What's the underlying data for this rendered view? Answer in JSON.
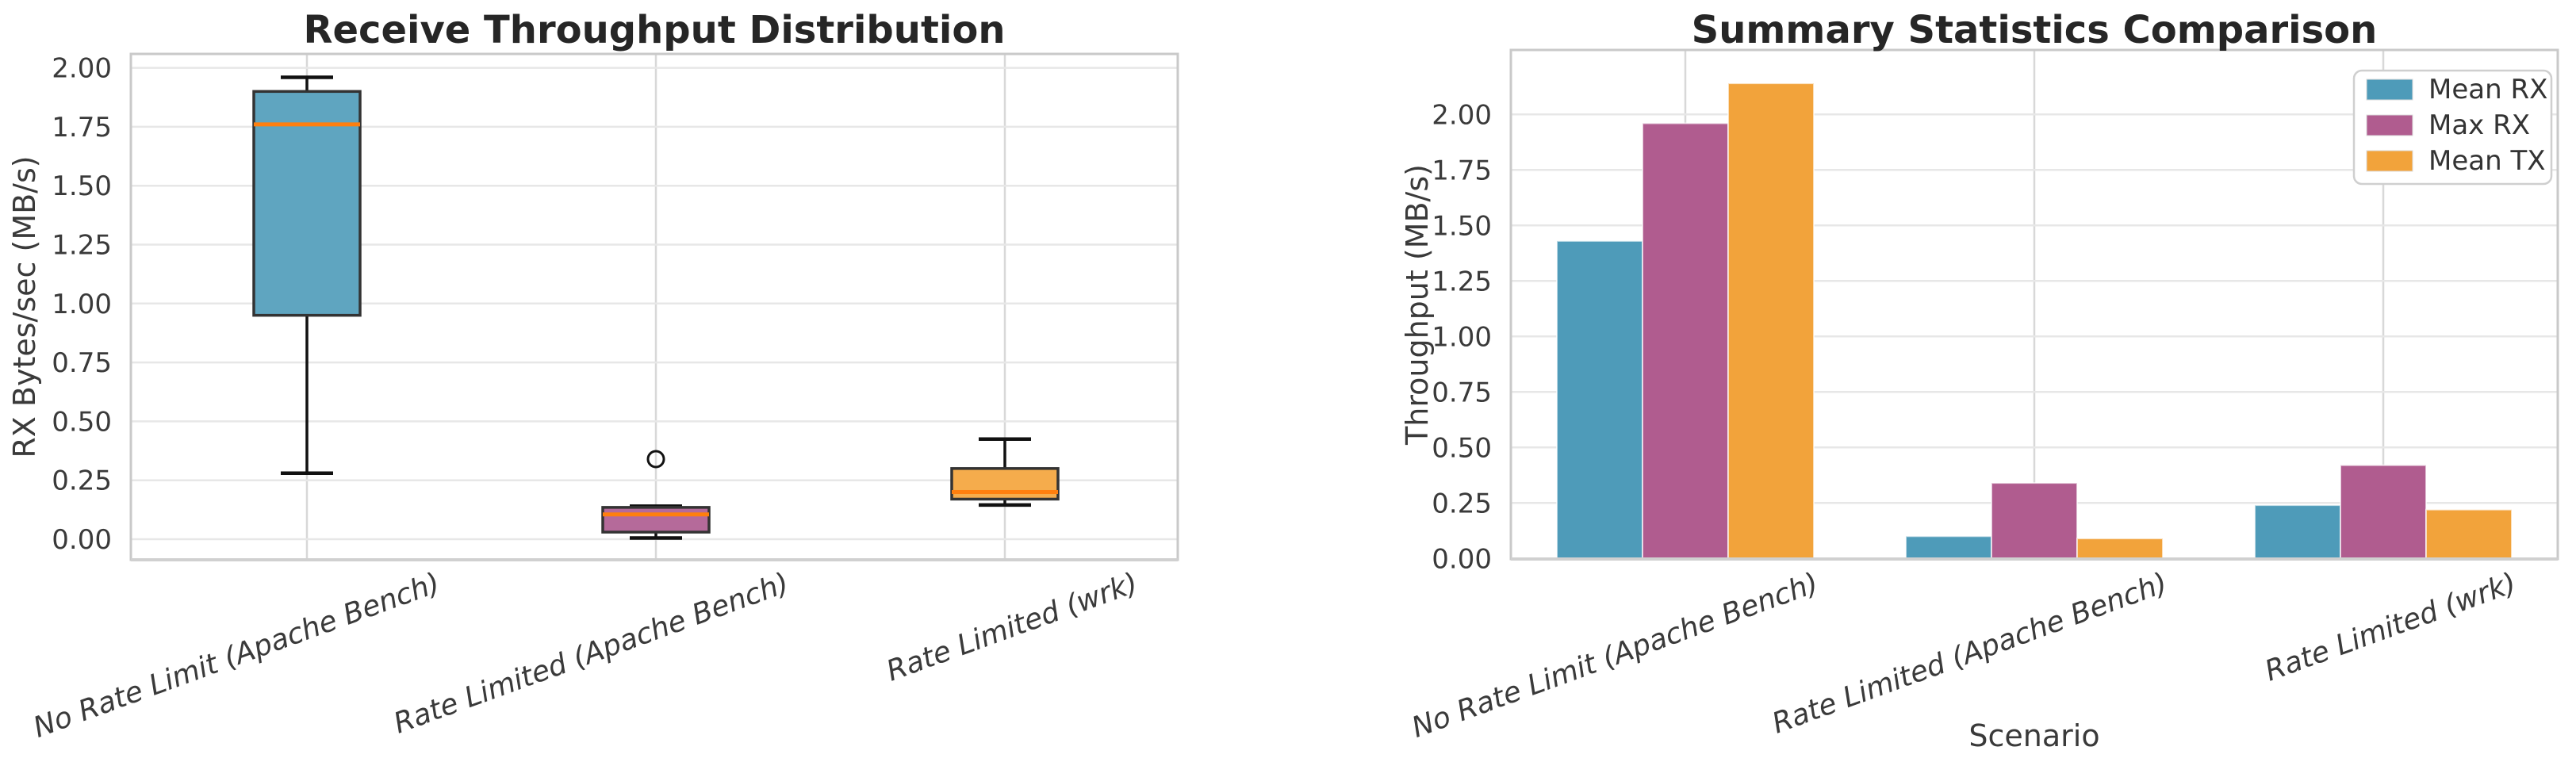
{
  "figure": {
    "background": "#ffffff"
  },
  "chart_data": [
    {
      "type": "box",
      "title": "Receive Throughput Distribution",
      "ylabel": "RX Bytes/sec (MB/s)",
      "xlabel": "",
      "categories": [
        "No Rate Limit (Apache Bench)",
        "Rate Limited (Apache Bench)",
        "Rate Limited (wrk)"
      ],
      "ytick_labels": [
        "0.00",
        "0.25",
        "0.50",
        "0.75",
        "1.00",
        "1.25",
        "1.50",
        "1.75",
        "2.00"
      ],
      "ylim": [
        -0.09,
        2.06
      ],
      "grid": true,
      "median_color": "#FF7F0E",
      "whisker_color": "#111111",
      "box_edge_color": "#333333",
      "boxes": [
        {
          "category": "No Rate Limit (Apache Bench)",
          "whisker_low": 0.28,
          "q1": 0.95,
          "median": 1.76,
          "q3": 1.9,
          "whisker_high": 1.96,
          "outliers": [],
          "fill": "#5FA5C0"
        },
        {
          "category": "Rate Limited (Apache Bench)",
          "whisker_low": 0.005,
          "q1": 0.03,
          "median": 0.105,
          "q3": 0.135,
          "whisker_high": 0.14,
          "outliers": [
            0.34
          ],
          "fill": "#B56A9A"
        },
        {
          "category": "Rate Limited (wrk)",
          "whisker_low": 0.145,
          "q1": 0.17,
          "median": 0.2,
          "q3": 0.3,
          "whisker_high": 0.425,
          "outliers": [],
          "fill": "#F5AC4C"
        }
      ]
    },
    {
      "type": "bar",
      "title": "Summary Statistics Comparison",
      "ylabel": "Throughput (MB/s)",
      "xlabel": "Scenario",
      "categories": [
        "No Rate Limit (Apache Bench)",
        "Rate Limited (Apache Bench)",
        "Rate Limited (wrk)"
      ],
      "ytick_labels": [
        "0.00",
        "0.25",
        "0.50",
        "0.75",
        "1.00",
        "1.25",
        "1.50",
        "1.75",
        "2.00"
      ],
      "ylim": [
        0,
        2.29
      ],
      "grid": true,
      "legend_position": "upper right",
      "series": [
        {
          "name": "Mean RX",
          "color": "#4E9BB9",
          "values": [
            1.43,
            0.1,
            0.24
          ]
        },
        {
          "name": "Max RX",
          "color": "#B05C8F",
          "values": [
            1.96,
            0.34,
            0.42
          ]
        },
        {
          "name": "Mean TX",
          "color": "#F2A33B",
          "values": [
            2.14,
            0.09,
            0.22
          ]
        }
      ]
    }
  ],
  "style_colors": {
    "grid_horizontal": "#E7E7E7",
    "grid_vertical": "#D8D8D8",
    "spine": "#C9C9C9",
    "legend_border": "#CFCFCF",
    "legend_background": "#FFFFFF"
  }
}
